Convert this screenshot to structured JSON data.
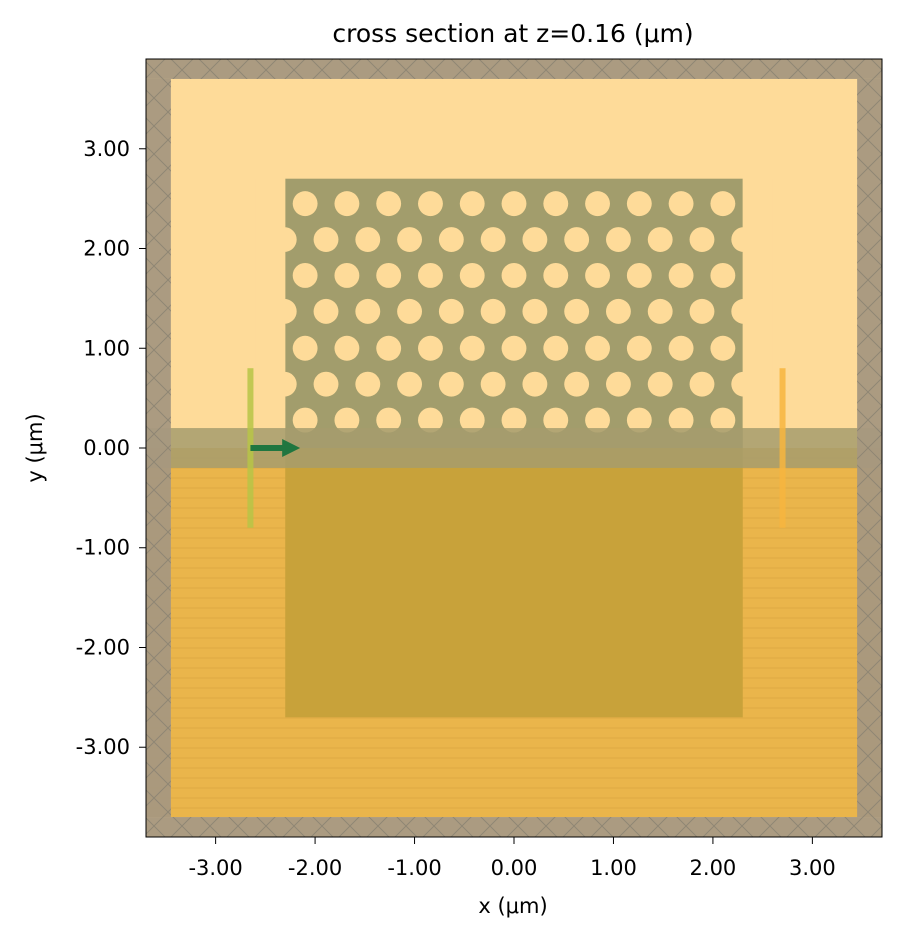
{
  "chart_data": {
    "type": "heatmap",
    "title": "cross section at z=0.16 (μm)",
    "xlabel": "x (μm)",
    "ylabel": "y (μm)",
    "xlim": [
      -3.7,
      3.7
    ],
    "ylim": [
      -3.9,
      3.9
    ],
    "xticks": [
      -3,
      -2,
      -1,
      0,
      1,
      2,
      3
    ],
    "yticks": [
      -3,
      -2,
      -1,
      0,
      1,
      2,
      3
    ],
    "xtick_labels": [
      "-3.00",
      "-2.00",
      "-1.00",
      "0.00",
      "1.00",
      "2.00",
      "3.00"
    ],
    "ytick_labels": [
      "-3.00",
      "-2.00",
      "-1.00",
      "0.00",
      "1.00",
      "2.00",
      "3.00"
    ],
    "grid": false,
    "simulation_domain": {
      "x": [
        -3.45,
        3.45
      ],
      "y": [
        -3.7,
        3.7
      ]
    },
    "pml_layer": {
      "x": [
        -3.7,
        3.7
      ],
      "y": [
        -3.9,
        3.9
      ],
      "inner_x": [
        -3.45,
        3.45
      ],
      "inner_y": [
        -3.7,
        3.7
      ]
    },
    "substrate": {
      "x": [
        -3.7,
        3.7
      ],
      "y": [
        -3.7,
        0.0
      ]
    },
    "slab": {
      "x": [
        -2.3,
        2.3
      ],
      "y": [
        -2.7,
        2.7
      ]
    },
    "waveguide": {
      "x": [
        -3.7,
        3.7
      ],
      "y": [
        -0.2,
        0.2
      ]
    },
    "holes": {
      "radius": 0.125,
      "rows_y": [
        2.45,
        2.09,
        1.73,
        1.37,
        1.0,
        0.64,
        0.28
      ],
      "even_row_x": [
        -2.1,
        -1.68,
        -1.26,
        -0.84,
        -0.42,
        0.0,
        0.42,
        0.84,
        1.26,
        1.68,
        2.1
      ],
      "odd_row_x": [
        -2.31,
        -1.89,
        -1.47,
        -1.05,
        -0.63,
        -0.21,
        0.21,
        0.63,
        1.05,
        1.47,
        1.89,
        2.31
      ]
    },
    "source": {
      "x": -2.65,
      "y": [
        -0.8,
        0.8
      ],
      "direction": "+x",
      "arrow_x": [
        -2.65,
        -2.15
      ],
      "arrow_y": 0.0
    },
    "monitor": {
      "x": 2.7,
      "y": [
        -0.8,
        0.8
      ]
    },
    "colors": {
      "background": "#fedb99",
      "substrate": "#eab54b",
      "substrate_stripe": "#d9a23e",
      "slab": "#a29d6c",
      "slab_lower": "#c8a23a",
      "hole": "#fedb99",
      "waveguide": "#a69c6d",
      "pml": "#a79880",
      "pml_hatch": "#8f8674",
      "source": "#b7c447",
      "arrow": "#207640",
      "monitor": "#f7b53e"
    }
  }
}
